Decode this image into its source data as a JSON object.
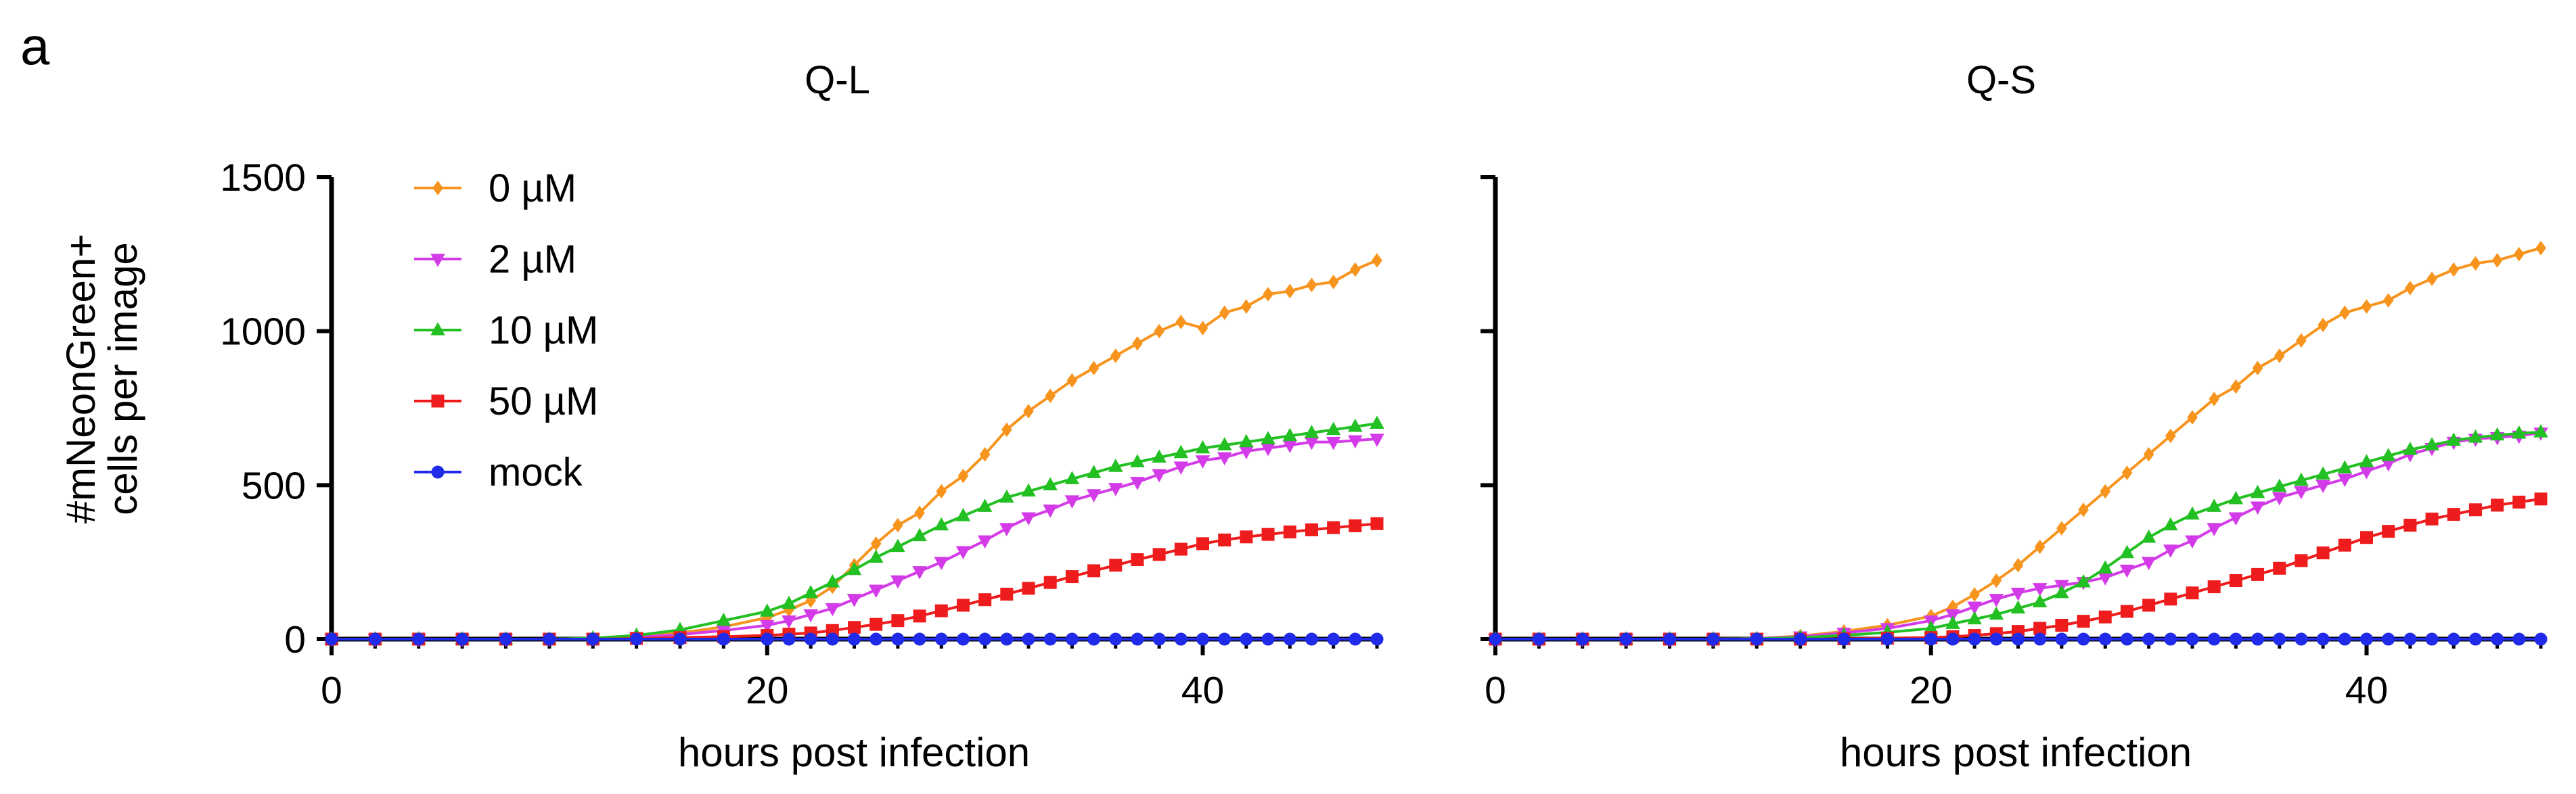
{
  "panel_label": "a",
  "colors": {
    "0 µM": "#F7941D",
    "2 µM": "#D43BE8",
    "10 µM": "#22C022",
    "50 µM": "#EE1C1C",
    "mock": "#1F2BE8"
  },
  "chart_data": [
    {
      "type": "line",
      "title": "Q-L",
      "xlabel": "hours post infection",
      "ylabel": "#mNeonGreen+\ncells per image",
      "xlim": [
        0,
        48
      ],
      "ylim": [
        0,
        1500
      ],
      "xticks": [
        0,
        20,
        40
      ],
      "yticks": [
        0,
        500,
        1000,
        1500
      ],
      "x": [
        0,
        2,
        4,
        6,
        8,
        10,
        12,
        14,
        16,
        18,
        20,
        21,
        22,
        23,
        24,
        25,
        26,
        27,
        28,
        29,
        30,
        31,
        32,
        33,
        34,
        35,
        36,
        37,
        38,
        39,
        40,
        41,
        42,
        43,
        44,
        45,
        46,
        47,
        48
      ],
      "legend": [
        "0 µM",
        "2 µM",
        "10 µM",
        "50 µM",
        "mock"
      ],
      "series": [
        {
          "name": "0 µM",
          "marker": "diamond",
          "values": [
            0,
            0,
            0,
            0,
            0,
            0,
            3,
            10,
            20,
            40,
            70,
            95,
            125,
            170,
            240,
            310,
            370,
            410,
            480,
            530,
            600,
            680,
            740,
            790,
            840,
            880,
            920,
            960,
            1000,
            1030,
            1010,
            1060,
            1080,
            1120,
            1130,
            1150,
            1160,
            1200,
            1230
          ]
        },
        {
          "name": "2 µM",
          "marker": "triangle-down",
          "values": [
            0,
            0,
            0,
            0,
            0,
            0,
            2,
            6,
            15,
            28,
            45,
            60,
            80,
            100,
            130,
            160,
            190,
            220,
            250,
            285,
            320,
            360,
            395,
            420,
            450,
            470,
            490,
            510,
            535,
            560,
            580,
            590,
            610,
            620,
            630,
            640,
            640,
            645,
            650
          ]
        },
        {
          "name": "10 µM",
          "marker": "triangle-up",
          "values": [
            0,
            0,
            0,
            0,
            0,
            0,
            3,
            12,
            30,
            60,
            90,
            115,
            150,
            185,
            225,
            265,
            300,
            335,
            370,
            400,
            430,
            460,
            480,
            500,
            520,
            540,
            560,
            575,
            590,
            605,
            620,
            630,
            640,
            650,
            660,
            670,
            680,
            690,
            700
          ]
        },
        {
          "name": "50 µM",
          "marker": "square",
          "values": [
            0,
            0,
            0,
            0,
            0,
            0,
            0,
            2,
            5,
            8,
            12,
            16,
            20,
            28,
            38,
            48,
            60,
            75,
            92,
            110,
            128,
            146,
            165,
            184,
            203,
            222,
            240,
            258,
            275,
            292,
            310,
            322,
            332,
            340,
            348,
            355,
            362,
            368,
            375
          ]
        },
        {
          "name": "mock",
          "marker": "circle",
          "values": [
            0,
            0,
            0,
            0,
            0,
            0,
            0,
            0,
            0,
            0,
            0,
            0,
            0,
            0,
            0,
            0,
            0,
            0,
            0,
            0,
            0,
            0,
            0,
            0,
            0,
            0,
            0,
            0,
            0,
            0,
            0,
            0,
            0,
            0,
            0,
            0,
            0,
            0,
            0
          ]
        }
      ]
    },
    {
      "type": "line",
      "title": "Q-S",
      "xlabel": "hours post infection",
      "ylabel": "",
      "xlim": [
        0,
        48
      ],
      "ylim": [
        0,
        1500
      ],
      "xticks": [
        0,
        20,
        40
      ],
      "yticks": [
        0,
        500,
        1000,
        1500
      ],
      "x": [
        0,
        2,
        4,
        6,
        8,
        10,
        12,
        14,
        16,
        18,
        20,
        21,
        22,
        23,
        24,
        25,
        26,
        27,
        28,
        29,
        30,
        31,
        32,
        33,
        34,
        35,
        36,
        37,
        38,
        39,
        40,
        41,
        42,
        43,
        44,
        45,
        46,
        47,
        48
      ],
      "legend": [],
      "series": [
        {
          "name": "0 µM",
          "marker": "diamond",
          "values": [
            0,
            0,
            0,
            0,
            0,
            0,
            2,
            10,
            25,
            45,
            75,
            105,
            145,
            190,
            240,
            300,
            360,
            420,
            480,
            540,
            600,
            660,
            720,
            780,
            820,
            880,
            920,
            970,
            1020,
            1060,
            1080,
            1100,
            1140,
            1170,
            1200,
            1220,
            1230,
            1250,
            1270
          ]
        },
        {
          "name": "2 µM",
          "marker": "triangle-down",
          "values": [
            0,
            0,
            0,
            0,
            0,
            0,
            2,
            8,
            20,
            35,
            60,
            80,
            105,
            130,
            150,
            165,
            175,
            185,
            200,
            225,
            250,
            290,
            320,
            360,
            395,
            430,
            460,
            480,
            500,
            520,
            545,
            570,
            600,
            620,
            640,
            650,
            655,
            660,
            670
          ]
        },
        {
          "name": "10 µM",
          "marker": "triangle-up",
          "values": [
            0,
            0,
            0,
            0,
            0,
            0,
            1,
            5,
            12,
            22,
            35,
            50,
            65,
            80,
            100,
            120,
            150,
            185,
            230,
            280,
            330,
            370,
            405,
            430,
            455,
            475,
            495,
            515,
            535,
            555,
            575,
            595,
            615,
            630,
            645,
            655,
            662,
            668,
            672
          ]
        },
        {
          "name": "50 µM",
          "marker": "square",
          "values": [
            0,
            0,
            0,
            0,
            0,
            0,
            0,
            0,
            1,
            3,
            5,
            8,
            12,
            18,
            25,
            35,
            45,
            58,
            72,
            90,
            110,
            130,
            150,
            170,
            190,
            210,
            230,
            255,
            280,
            305,
            330,
            350,
            370,
            390,
            405,
            420,
            435,
            445,
            455
          ]
        },
        {
          "name": "mock",
          "marker": "circle",
          "values": [
            0,
            0,
            0,
            0,
            0,
            0,
            0,
            0,
            0,
            0,
            0,
            0,
            0,
            0,
            0,
            0,
            0,
            0,
            0,
            0,
            0,
            0,
            0,
            0,
            0,
            0,
            0,
            0,
            0,
            0,
            0,
            0,
            0,
            0,
            0,
            0,
            0,
            0,
            0
          ]
        }
      ]
    }
  ]
}
